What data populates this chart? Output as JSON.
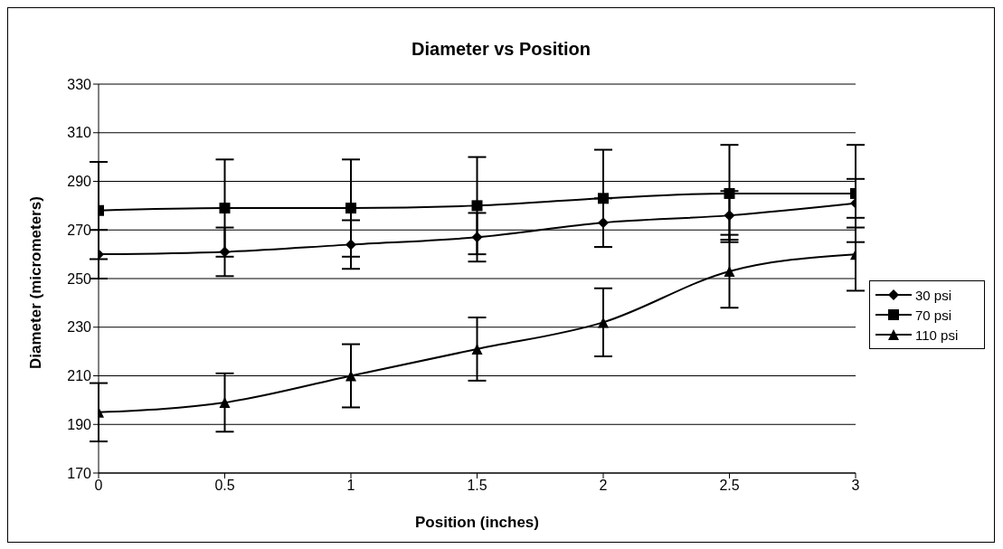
{
  "chart_data": {
    "type": "line",
    "title": "Diameter vs Position",
    "xlabel": "Position (inches)",
    "ylabel": "Diameter (micrometers)",
    "x": [
      0,
      0.5,
      1,
      1.5,
      2,
      2.5,
      3
    ],
    "xlim": [
      0,
      3
    ],
    "xticks": [
      0,
      0.5,
      1,
      1.5,
      2,
      2.5,
      3
    ],
    "ylim": [
      170,
      330
    ],
    "yticks": [
      170,
      190,
      210,
      230,
      250,
      270,
      290,
      310,
      330
    ],
    "grid": "y",
    "legend": "right",
    "series": [
      {
        "name": "30 psi",
        "color": "#000000",
        "marker": "diamond",
        "values": [
          260,
          261,
          264,
          267,
          273,
          276,
          281
        ],
        "errors": [
          10,
          10,
          10,
          10,
          10,
          10,
          10
        ]
      },
      {
        "name": "70 psi",
        "color": "#000000",
        "marker": "square",
        "values": [
          278,
          279,
          279,
          280,
          283,
          285,
          285
        ],
        "errors": [
          20,
          20,
          20,
          20,
          20,
          20,
          20
        ]
      },
      {
        "name": "110 psi",
        "color": "#000000",
        "marker": "triangle",
        "values": [
          195,
          199,
          210,
          221,
          232,
          253,
          260
        ],
        "errors": [
          12,
          12,
          13,
          13,
          14,
          15,
          15
        ]
      }
    ]
  }
}
